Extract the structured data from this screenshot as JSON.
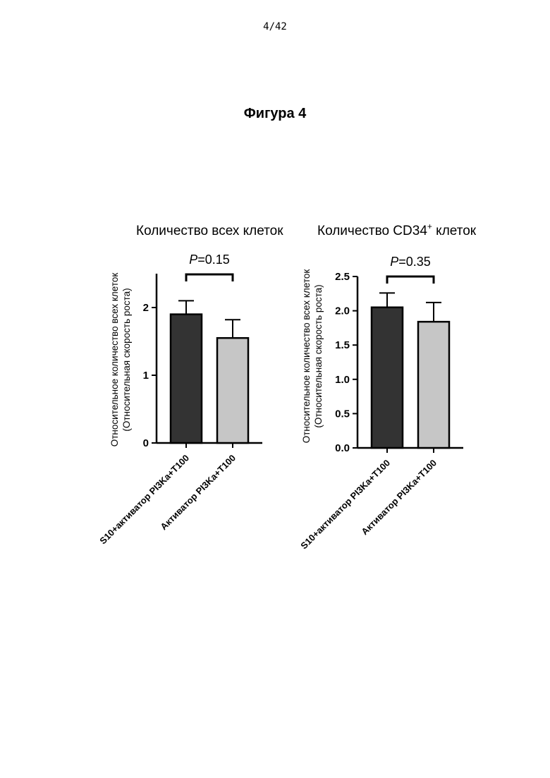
{
  "page": {
    "number": "4/42",
    "figure_title": "Фигура 4"
  },
  "chart_data": [
    {
      "type": "bar",
      "title": "Количество всех клеток",
      "ylabel": [
        "Относительное количество всех клеток",
        "(Относительная скорость роста)"
      ],
      "categories": [
        "S10+активатор PI3Ka+T100",
        "Активатор PI3Ka+T100"
      ],
      "values": [
        1.9,
        1.55
      ],
      "errors": [
        0.2,
        0.27
      ],
      "ylim": [
        0,
        2.5
      ],
      "yticks": [
        0,
        1,
        2
      ],
      "ytick_labels": [
        "0",
        "1",
        "2"
      ],
      "bar_colors": [
        "#333333",
        "#c6c6c6"
      ],
      "comparison": {
        "p_label": "P",
        "p_value": "=0.15"
      },
      "grid": false
    },
    {
      "type": "bar",
      "title": "Количество CD34",
      "title_sup": "+",
      "title_suffix": " клеток",
      "ylabel": [
        "Относительное количество всех клеток",
        "(Относительная скорость роста)"
      ],
      "categories": [
        "S10+активатор PI3Ka+T100",
        "Активатор PI3Ka+T100"
      ],
      "values": [
        2.05,
        1.84
      ],
      "errors": [
        0.21,
        0.28
      ],
      "ylim": [
        0,
        2.5
      ],
      "yticks": [
        0,
        0.5,
        1.0,
        1.5,
        2.0,
        2.5
      ],
      "ytick_labels": [
        "0.0",
        "0.5",
        "1.0",
        "1.5",
        "2.0",
        "2.5"
      ],
      "bar_colors": [
        "#333333",
        "#c6c6c6"
      ],
      "comparison": {
        "p_label": "P",
        "p_value": "=0.35"
      },
      "grid": false
    }
  ]
}
